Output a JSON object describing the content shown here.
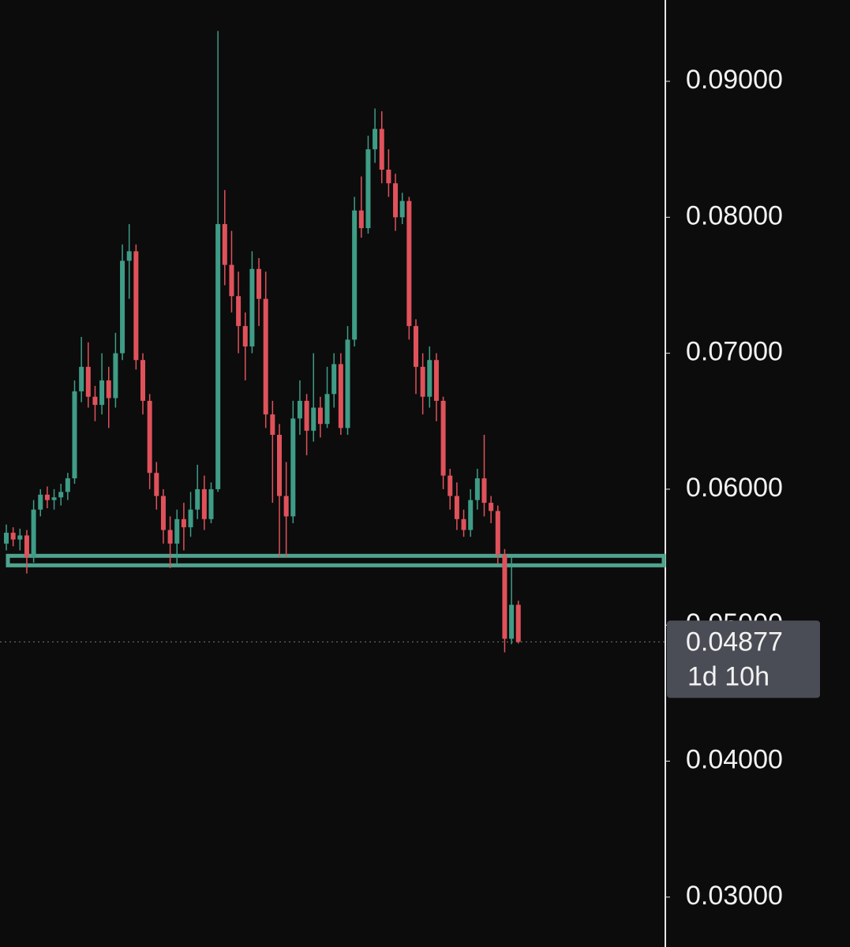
{
  "chart_data": {
    "type": "candlestick",
    "up_color": "#3f9c86",
    "down_color": "#e0525b",
    "open": [
      0.056,
      0.0568,
      0.0563,
      0.0566,
      0.055,
      0.0585,
      0.0596,
      0.0592,
      0.0594,
      0.0598,
      0.0608,
      0.0672,
      0.069,
      0.0668,
      0.0662,
      0.068,
      0.0667,
      0.07,
      0.0768,
      0.0775,
      0.0695,
      0.0665,
      0.0612,
      0.0595,
      0.057,
      0.056,
      0.0578,
      0.0572,
      0.0585,
      0.06,
      0.0578,
      0.06,
      0.0795,
      0.0765,
      0.0742,
      0.072,
      0.0705,
      0.0762,
      0.074,
      0.0655,
      0.064,
      0.0595,
      0.058,
      0.0652,
      0.0665,
      0.0643,
      0.066,
      0.0648,
      0.067,
      0.0692,
      0.0645,
      0.071,
      0.0805,
      0.0792,
      0.085,
      0.0865,
      0.0835,
      0.0825,
      0.08,
      0.0812,
      0.072,
      0.069,
      0.0668,
      0.0695,
      0.0665,
      0.061,
      0.0595,
      0.0578,
      0.057,
      0.0592,
      0.0608,
      0.059,
      0.0584,
      0.0552,
      0.049,
      0.0515
    ],
    "high": [
      0.0574,
      0.0572,
      0.0571,
      0.057,
      0.0592,
      0.06,
      0.0602,
      0.06,
      0.0604,
      0.0612,
      0.068,
      0.0712,
      0.0708,
      0.0676,
      0.07,
      0.069,
      0.0715,
      0.078,
      0.0795,
      0.078,
      0.07,
      0.067,
      0.062,
      0.06,
      0.058,
      0.0585,
      0.059,
      0.0598,
      0.0618,
      0.061,
      0.0605,
      0.0937,
      0.082,
      0.079,
      0.076,
      0.073,
      0.0775,
      0.077,
      0.076,
      0.0665,
      0.0648,
      0.062,
      0.0665,
      0.068,
      0.067,
      0.07,
      0.0668,
      0.069,
      0.07,
      0.07,
      0.072,
      0.0815,
      0.083,
      0.086,
      0.088,
      0.0878,
      0.085,
      0.0832,
      0.0818,
      0.0815,
      0.0725,
      0.07,
      0.0705,
      0.07,
      0.0668,
      0.0615,
      0.0605,
      0.0585,
      0.06,
      0.0615,
      0.064,
      0.0595,
      0.0588,
      0.0556,
      0.055,
      0.0518
    ],
    "low": [
      0.0555,
      0.0558,
      0.0555,
      0.0538,
      0.0546,
      0.058,
      0.0586,
      0.0585,
      0.0588,
      0.0592,
      0.0604,
      0.0664,
      0.066,
      0.065,
      0.0655,
      0.0645,
      0.066,
      0.0695,
      0.074,
      0.0688,
      0.0655,
      0.06,
      0.0585,
      0.056,
      0.0542,
      0.0545,
      0.0555,
      0.0565,
      0.0578,
      0.057,
      0.0575,
      0.0598,
      0.075,
      0.073,
      0.07,
      0.068,
      0.07,
      0.072,
      0.0645,
      0.059,
      0.055,
      0.055,
      0.0575,
      0.064,
      0.0625,
      0.0635,
      0.0638,
      0.0645,
      0.066,
      0.064,
      0.064,
      0.0705,
      0.0785,
      0.0788,
      0.084,
      0.0825,
      0.0815,
      0.079,
      0.0795,
      0.071,
      0.067,
      0.0655,
      0.066,
      0.065,
      0.06,
      0.0585,
      0.057,
      0.0565,
      0.0565,
      0.0585,
      0.058,
      0.0575,
      0.0545,
      0.048,
      0.0486,
      0.04865
    ],
    "close": [
      0.0568,
      0.0563,
      0.0566,
      0.055,
      0.0585,
      0.0596,
      0.0592,
      0.0594,
      0.0598,
      0.0608,
      0.0672,
      0.069,
      0.0668,
      0.0662,
      0.068,
      0.0667,
      0.07,
      0.0768,
      0.0775,
      0.0695,
      0.0665,
      0.0612,
      0.0595,
      0.057,
      0.056,
      0.0578,
      0.0572,
      0.0585,
      0.06,
      0.0578,
      0.06,
      0.0795,
      0.0765,
      0.0742,
      0.072,
      0.0705,
      0.0762,
      0.074,
      0.0655,
      0.064,
      0.0595,
      0.058,
      0.0652,
      0.0665,
      0.0643,
      0.066,
      0.0648,
      0.067,
      0.0692,
      0.0645,
      0.071,
      0.0805,
      0.0792,
      0.085,
      0.0865,
      0.0835,
      0.0825,
      0.08,
      0.0812,
      0.072,
      0.069,
      0.0668,
      0.0695,
      0.0665,
      0.061,
      0.0595,
      0.0578,
      0.057,
      0.0592,
      0.0608,
      0.059,
      0.0584,
      0.0552,
      0.049,
      0.0515,
      0.04877
    ],
    "support_zone": [
      0.0544,
      0.0551
    ],
    "price_label": "0.04877",
    "countdown": "1d 10h",
    "ylim": [
      0.02633,
      0.09598
    ],
    "yticks": [
      {
        "value": 0.03,
        "label": "0.03000"
      },
      {
        "value": 0.04,
        "label": "0.04000"
      },
      {
        "value": 0.05,
        "label": "0.05000"
      },
      {
        "value": 0.06,
        "label": "0.06000"
      },
      {
        "value": 0.07,
        "label": "0.07000"
      },
      {
        "value": 0.08,
        "label": "0.08000"
      },
      {
        "value": 0.09,
        "label": "0.09000"
      }
    ]
  }
}
